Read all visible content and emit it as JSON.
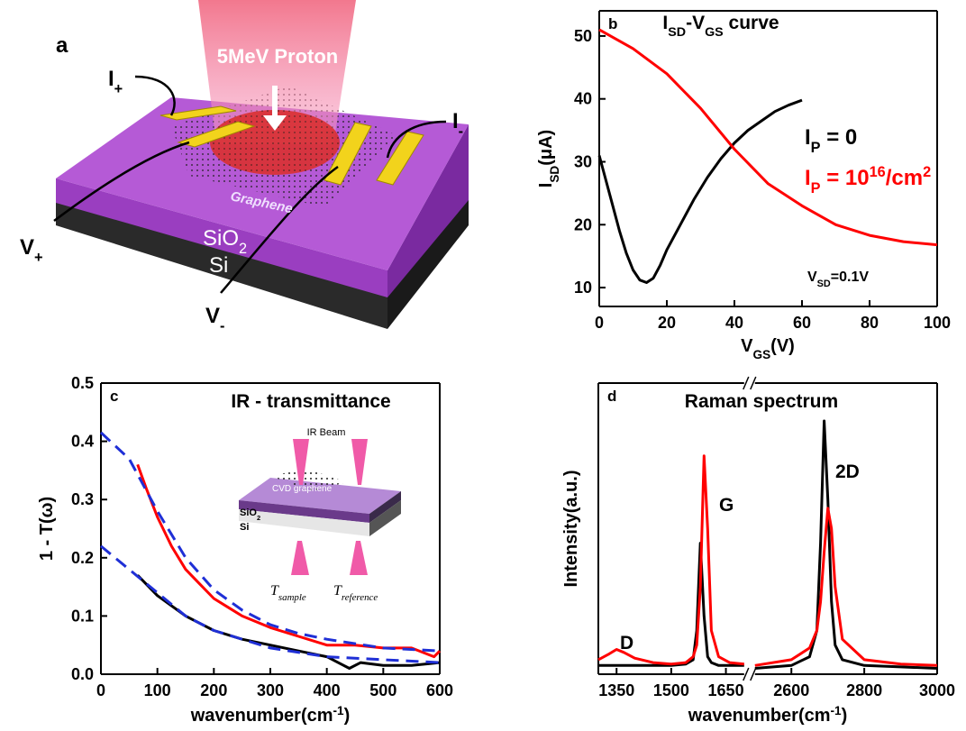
{
  "diagram": {
    "panel": "a",
    "beam": "5MeV Proton",
    "i_plus": [
      {
        "t": "I"
      },
      {
        "sub": "+"
      }
    ],
    "i_minus": [
      {
        "t": "I"
      },
      {
        "sub": "-"
      }
    ],
    "v_plus": [
      {
        "t": "V"
      },
      {
        "sub": "+"
      }
    ],
    "v_minus": [
      {
        "t": "V"
      },
      {
        "sub": "-"
      }
    ],
    "graphene": "Graphene",
    "sio2": [
      {
        "t": "SiO"
      },
      {
        "sub": "2"
      }
    ],
    "si": "Si"
  },
  "chart_data": [
    {
      "type": "line",
      "panel": "b",
      "title": [
        {
          "t": "I"
        },
        {
          "sub": "SD"
        },
        {
          "t": "-V"
        },
        {
          "sub": "GS"
        },
        {
          "t": " curve"
        }
      ],
      "x_label": [
        {
          "t": "V"
        },
        {
          "sub": "GS"
        },
        {
          "t": "(V)"
        }
      ],
      "y_label": [
        {
          "t": "I"
        },
        {
          "sub": "SD"
        },
        {
          "t": "(μA)"
        }
      ],
      "annotations": [
        [
          {
            "t": "V"
          },
          {
            "sub": "SD"
          },
          {
            "t": "=0.1V"
          }
        ]
      ],
      "xlim": [
        0,
        100
      ],
      "xticks": [
        0,
        20,
        40,
        60,
        80,
        100
      ],
      "ylim": [
        7,
        54
      ],
      "yticks": [
        10,
        20,
        30,
        40,
        50
      ],
      "series": [
        {
          "name": [
            {
              "t": "I"
            },
            {
              "sub": "P"
            },
            {
              "t": " = 0"
            }
          ],
          "color": "#000000",
          "x": [
            0,
            2,
            4,
            6,
            8,
            10,
            12,
            14,
            16,
            18,
            20,
            24,
            28,
            32,
            36,
            40,
            44,
            48,
            52,
            56,
            60
          ],
          "values": [
            31,
            27,
            23,
            19,
            15.5,
            12.8,
            11.2,
            10.8,
            11.5,
            13.5,
            16,
            20,
            24,
            27.5,
            30.5,
            33,
            35,
            36.5,
            38,
            39,
            39.8
          ]
        },
        {
          "name": [
            {
              "t": "I"
            },
            {
              "sub": "P"
            },
            {
              "t": " = 10"
            },
            {
              "sup": "16"
            },
            {
              "t": "/cm"
            },
            {
              "sup": "2"
            }
          ],
          "color": "#ff0000",
          "x": [
            0,
            10,
            20,
            30,
            40,
            50,
            60,
            70,
            80,
            90,
            100
          ],
          "values": [
            51,
            48,
            44,
            38.5,
            32,
            26.5,
            23,
            20,
            18.3,
            17.3,
            16.8
          ]
        }
      ]
    },
    {
      "type": "line",
      "panel": "c",
      "title": "IR - transmittance",
      "x_label": [
        {
          "t": "wavenumber(cm"
        },
        {
          "sup": "-1"
        },
        {
          "t": ")"
        }
      ],
      "y_label": "1 - T(ω)",
      "inset": {
        "beam": "IR Beam",
        "layer": "CVD graphene",
        "sio2": [
          {
            "t": "SiO"
          },
          {
            "sub": "2"
          }
        ],
        "si": "Si",
        "t_sample": [
          {
            "t": "T"
          },
          {
            "sub": "sample"
          }
        ],
        "t_reference": [
          {
            "t": "T"
          },
          {
            "sub": "reference"
          }
        ]
      },
      "xlim": [
        0,
        600
      ],
      "xticks": [
        0,
        100,
        200,
        300,
        400,
        500,
        600
      ],
      "ylim": [
        0,
        0.5
      ],
      "yticks": [
        {
          "value": 0,
          "label": "0.0"
        },
        0.1,
        0.2,
        0.3,
        0.4,
        0.5
      ],
      "series": [
        {
          "color": "#ff0000",
          "x": [
            65,
            80,
            100,
            125,
            150,
            175,
            200,
            250,
            300,
            350,
            400,
            450,
            500,
            550,
            590,
            600
          ],
          "values": [
            0.36,
            0.32,
            0.27,
            0.22,
            0.18,
            0.155,
            0.13,
            0.1,
            0.08,
            0.065,
            0.05,
            0.05,
            0.045,
            0.045,
            0.03,
            0.04
          ]
        },
        {
          "color": "#000000",
          "x": [
            65,
            100,
            150,
            200,
            250,
            300,
            350,
            400,
            440,
            460,
            500,
            550,
            600
          ],
          "values": [
            0.17,
            0.135,
            0.1,
            0.075,
            0.06,
            0.05,
            0.04,
            0.03,
            0.01,
            0.02,
            0.015,
            0.015,
            0.02
          ]
        },
        {
          "color": "#1f2fd6",
          "dashed": true,
          "x": [
            0,
            50,
            100,
            150,
            200,
            250,
            300,
            350,
            400,
            500,
            600
          ],
          "values": [
            0.415,
            0.37,
            0.28,
            0.2,
            0.145,
            0.11,
            0.085,
            0.07,
            0.06,
            0.045,
            0.04
          ]
        },
        {
          "color": "#1f2fd6",
          "dashed": true,
          "x": [
            0,
            50,
            100,
            150,
            200,
            300,
            400,
            500,
            600
          ],
          "values": [
            0.22,
            0.18,
            0.14,
            0.1,
            0.075,
            0.045,
            0.03,
            0.025,
            0.02
          ]
        }
      ]
    },
    {
      "type": "line",
      "panel": "d",
      "title": "Raman spectrum",
      "x_label": [
        {
          "t": "wavenumber(cm"
        },
        {
          "sup": "-1"
        },
        {
          "t": ")"
        }
      ],
      "y_label": "Intensity(a.u.)",
      "annotations": [
        "D",
        "G",
        "2D"
      ],
      "xlim": [
        [
          1300,
          1700
        ],
        [
          2500,
          3000
        ]
      ],
      "xticks": [
        1350,
        1500,
        1650,
        2600,
        2800,
        3000
      ],
      "ylim": [
        0,
        1
      ],
      "series": [
        {
          "color": "#000000",
          "x": [
            1300,
            1330,
            1350,
            1370,
            1400,
            1450,
            1500,
            1540,
            1560,
            1570,
            1580,
            1590,
            1600,
            1610,
            1630,
            1660,
            1700,
            2500,
            2600,
            2650,
            2670,
            2680,
            2690,
            2700,
            2710,
            2720,
            2740,
            2800,
            2900,
            3000
          ],
          "values": [
            0.03,
            0.03,
            0.03,
            0.03,
            0.03,
            0.03,
            0.03,
            0.035,
            0.05,
            0.15,
            0.45,
            0.2,
            0.06,
            0.04,
            0.03,
            0.03,
            0.03,
            0.02,
            0.03,
            0.06,
            0.15,
            0.45,
            0.87,
            0.6,
            0.25,
            0.1,
            0.05,
            0.03,
            0.025,
            0.02
          ]
        },
        {
          "color": "#ff0000",
          "x": [
            1300,
            1330,
            1350,
            1370,
            1400,
            1450,
            1500,
            1540,
            1560,
            1570,
            1580,
            1590,
            1600,
            1610,
            1630,
            1660,
            1700,
            2500,
            2600,
            2650,
            2670,
            2680,
            2690,
            2700,
            2710,
            2720,
            2740,
            2800,
            2900,
            3000
          ],
          "values": [
            0.05,
            0.07,
            0.085,
            0.075,
            0.055,
            0.04,
            0.035,
            0.04,
            0.06,
            0.1,
            0.3,
            0.75,
            0.5,
            0.15,
            0.06,
            0.04,
            0.035,
            0.03,
            0.05,
            0.09,
            0.15,
            0.25,
            0.42,
            0.57,
            0.5,
            0.3,
            0.12,
            0.05,
            0.035,
            0.03
          ]
        }
      ]
    }
  ]
}
